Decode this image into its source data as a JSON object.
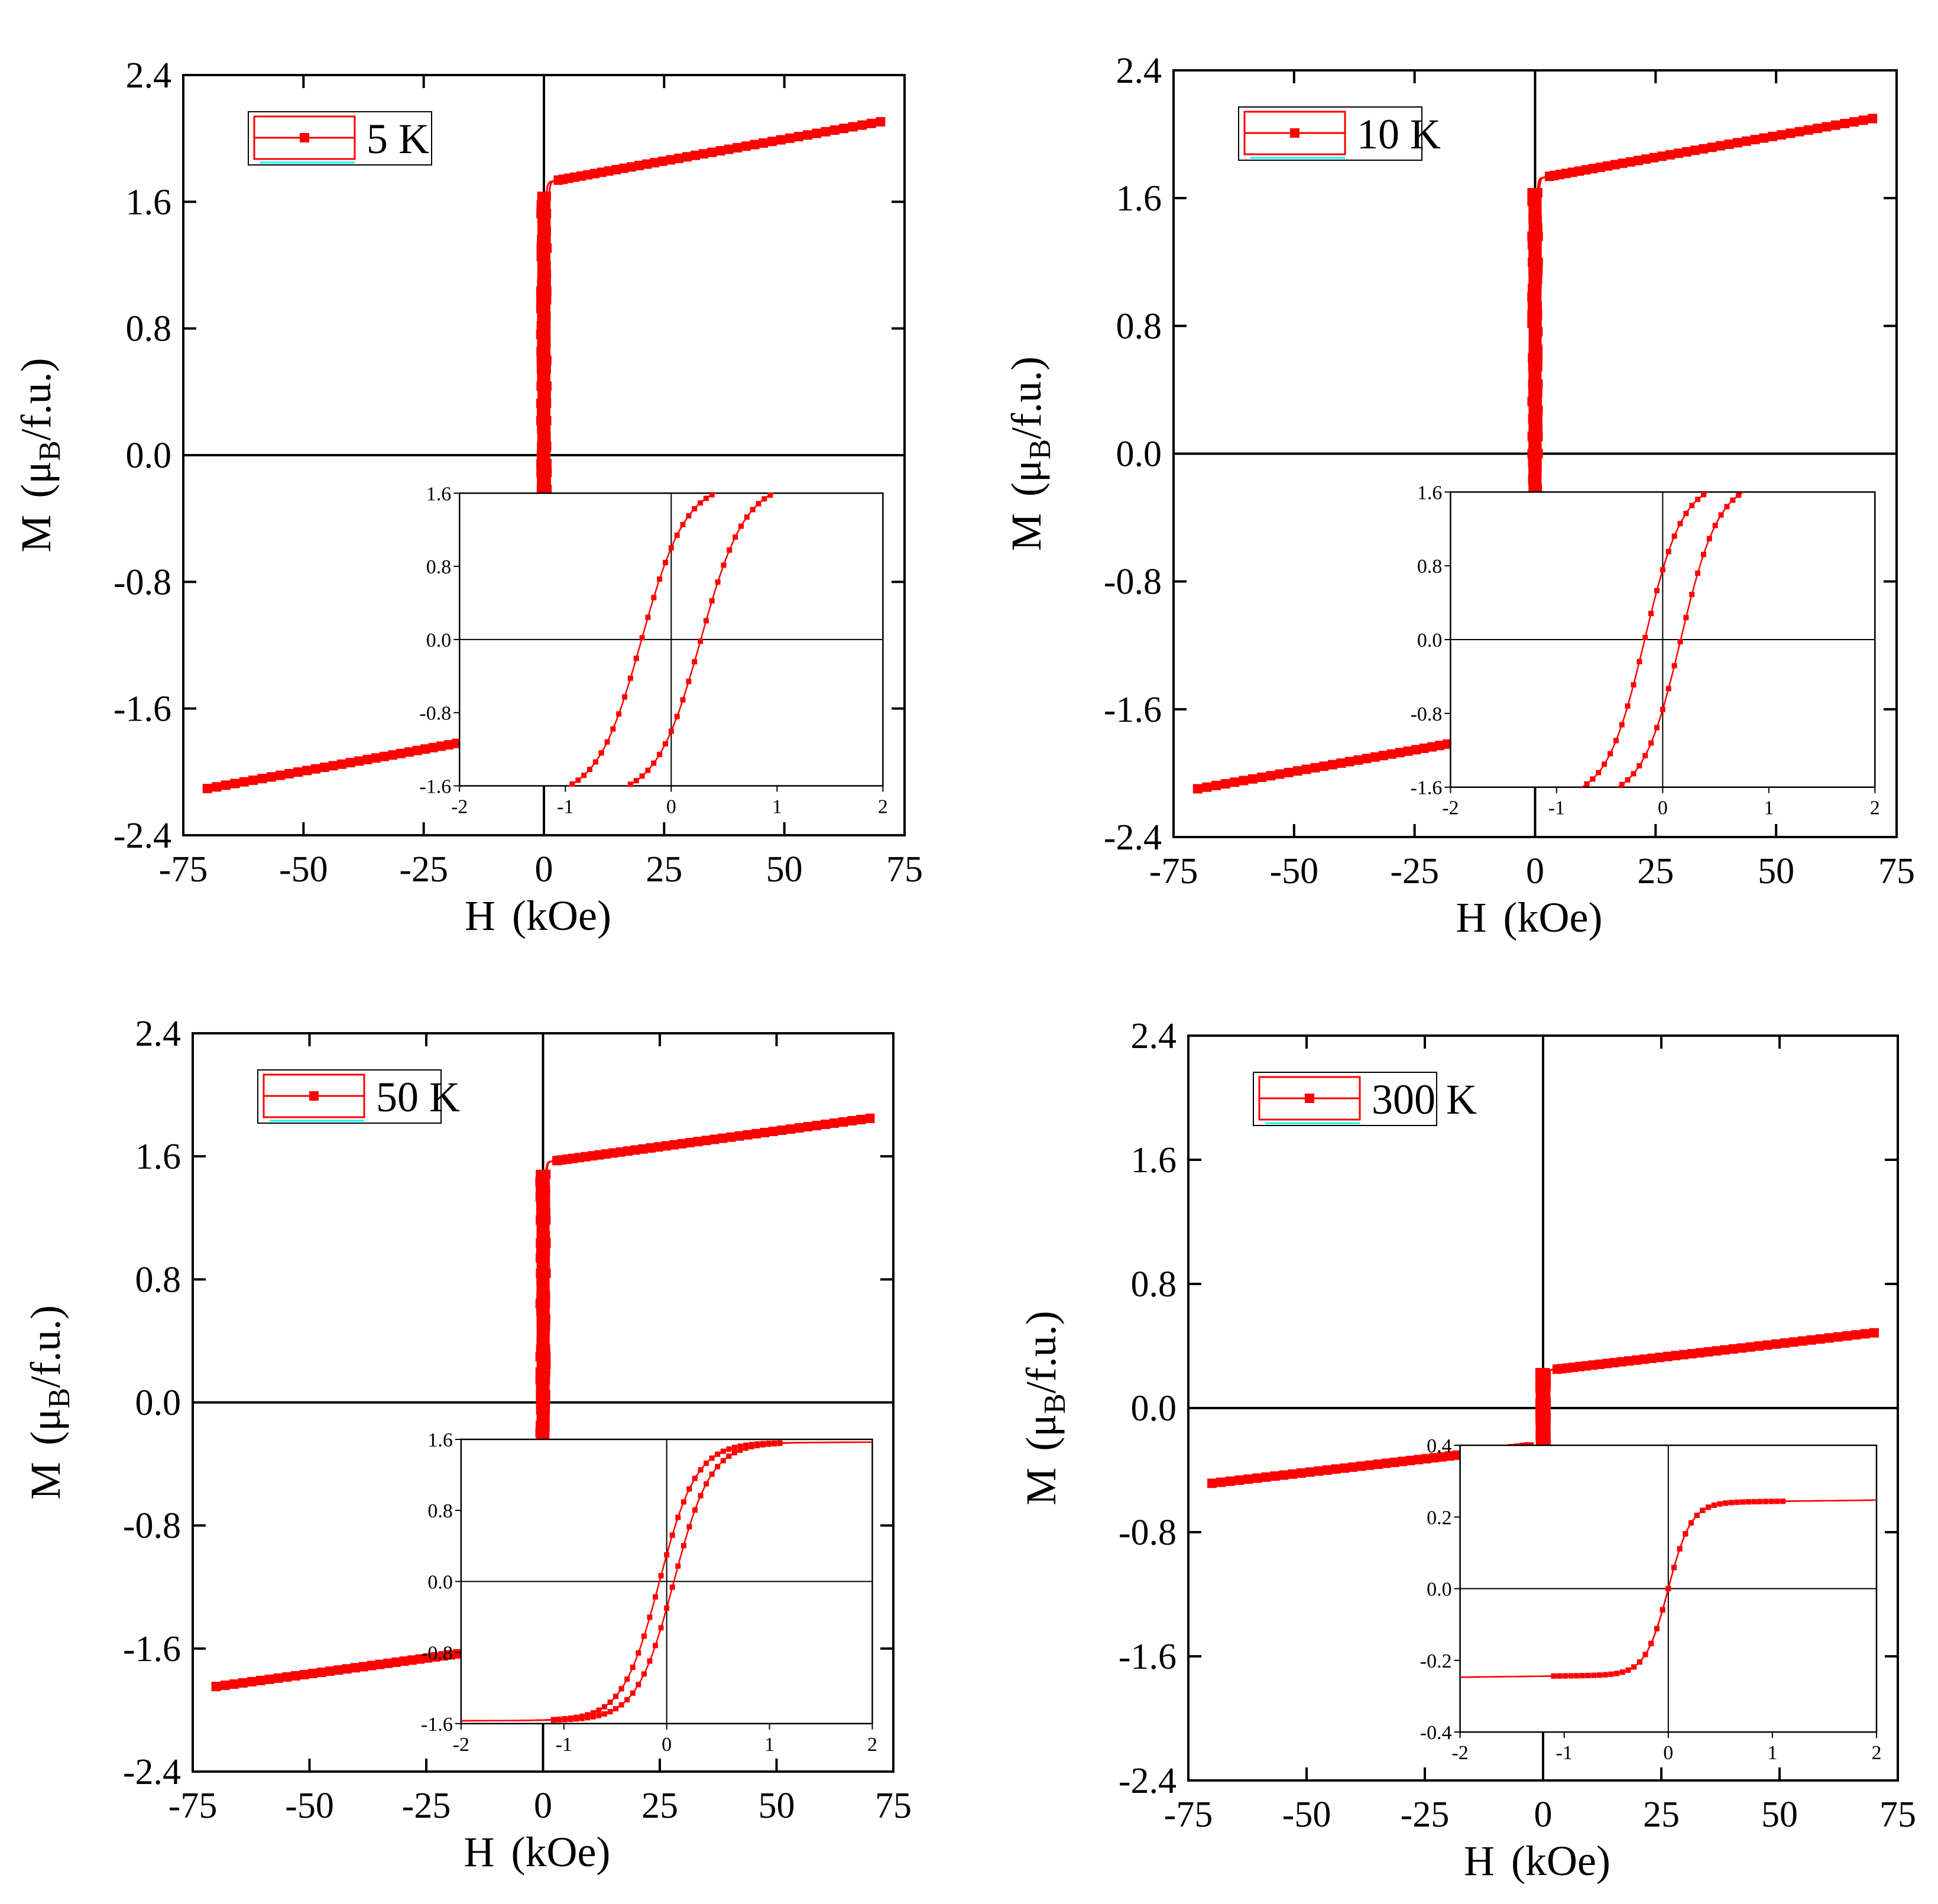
{
  "figure": {
    "series_color": "#ff0000",
    "axis_color": "#000000",
    "legend_accent_color": "#00ffff",
    "xlabel_main": "H",
    "xlabel_unit": "(kOe)",
    "ylabel_main": "M",
    "ylabel_mu": "(μ",
    "ylabel_sub": "B",
    "ylabel_unit": "/f.u.)"
  },
  "chart_data": [
    {
      "type": "line",
      "title": "5 K",
      "legend": "5 K",
      "legend_position": "top-left",
      "xlabel": "H (kOe)",
      "ylabel": "M (μB/f.u.)",
      "xlim": [
        -75,
        75
      ],
      "ylim": [
        -2.4,
        2.4
      ],
      "xticks": [
        "-75",
        "-50",
        "-25",
        "0",
        "25",
        "50",
        "75"
      ],
      "yticks": [
        "-2.4",
        "-1.6",
        "-0.8",
        "0.0",
        "0.8",
        "1.6",
        "2.4"
      ],
      "model": {
        "Ms": 1.72,
        "chi": 0.0055,
        "Hc": 0.28,
        "w": 0.42
      },
      "main_points": {
        "x_max": 70,
        "samples": 40
      },
      "inset": {
        "xlim": [
          -2,
          2
        ],
        "ylim": [
          -1.6,
          1.6
        ],
        "xticks": [
          "-2",
          "-1",
          "0",
          "1",
          "2"
        ],
        "yticks": [
          "-1.6",
          "-0.8",
          "0.0",
          "0.8",
          "1.6"
        ]
      }
    },
    {
      "type": "line",
      "title": "10 K",
      "legend": "10 K",
      "legend_position": "top-left",
      "xlabel": "H (kOe)",
      "ylabel": "M (μB/f.u.)",
      "xlim": [
        -75,
        75
      ],
      "ylim": [
        -2.4,
        2.4
      ],
      "xticks": [
        "-75",
        "-50",
        "-25",
        "0",
        "25",
        "50",
        "75"
      ],
      "yticks": [
        "-2.4",
        "-1.6",
        "-0.8",
        "0.0",
        "0.8",
        "1.6",
        "2.4"
      ],
      "model": {
        "Ms": 1.72,
        "chi": 0.0054,
        "Hc": 0.17,
        "w": 0.36
      },
      "main_points": {
        "x_max": 70,
        "samples": 40
      },
      "inset": {
        "xlim": [
          -2,
          2
        ],
        "ylim": [
          -1.6,
          1.6
        ],
        "xticks": [
          "-2",
          "-1",
          "0",
          "1",
          "2"
        ],
        "yticks": [
          "-1.6",
          "-0.8",
          "0.0",
          "0.8",
          "1.6"
        ]
      }
    },
    {
      "type": "line",
      "title": "50 K",
      "legend": "50 K",
      "legend_position": "top-left",
      "xlabel": "H (kOe)",
      "ylabel": "M (μB/f.u.)",
      "xlim": [
        -75,
        75
      ],
      "ylim": [
        -2.4,
        2.4
      ],
      "xticks": [
        "-75",
        "-50",
        "-25",
        "0",
        "25",
        "50",
        "75"
      ],
      "yticks": [
        "-2.4",
        "-1.6",
        "-0.8",
        "0.0",
        "0.8",
        "1.6",
        "2.4"
      ],
      "model": {
        "Ms": 1.56,
        "chi": 0.0041,
        "Hc": 0.07,
        "w": 0.36
      },
      "main_points": {
        "x_max": 70,
        "samples": 40
      },
      "inset": {
        "xlim": [
          -2,
          2
        ],
        "ylim": [
          -1.6,
          1.6
        ],
        "xticks": [
          "-2",
          "-1",
          "0",
          "1",
          "2"
        ],
        "yticks": [
          "-1.6",
          "-0.8",
          "0.0",
          "0.8",
          "1.6"
        ]
      }
    },
    {
      "type": "line",
      "title": "300 K",
      "legend": "300 K",
      "legend_position": "top-left",
      "xlabel": "H (kOe)",
      "ylabel": "M (μB/f.u.)",
      "xlim": [
        -75,
        75
      ],
      "ylim": [
        -2.4,
        2.4
      ],
      "xticks": [
        "-75",
        "-50",
        "-25",
        "0",
        "25",
        "50",
        "75"
      ],
      "yticks": [
        "-2.4",
        "-1.6",
        "-0.8",
        "0.0",
        "0.8",
        "1.6",
        "2.4"
      ],
      "model": {
        "Ms": 0.24,
        "chi": 0.0035,
        "Hc": 0.0,
        "w": 0.22
      },
      "main_points": {
        "x_max": 70,
        "samples": 40
      },
      "inset": {
        "xlim": [
          -2,
          2
        ],
        "ylim": [
          -0.4,
          0.4
        ],
        "xticks": [
          "-2",
          "-1",
          "0",
          "1",
          "2"
        ],
        "yticks": [
          "-0.4",
          "-0.2",
          "0.0",
          "0.2",
          "0.4"
        ]
      }
    }
  ]
}
